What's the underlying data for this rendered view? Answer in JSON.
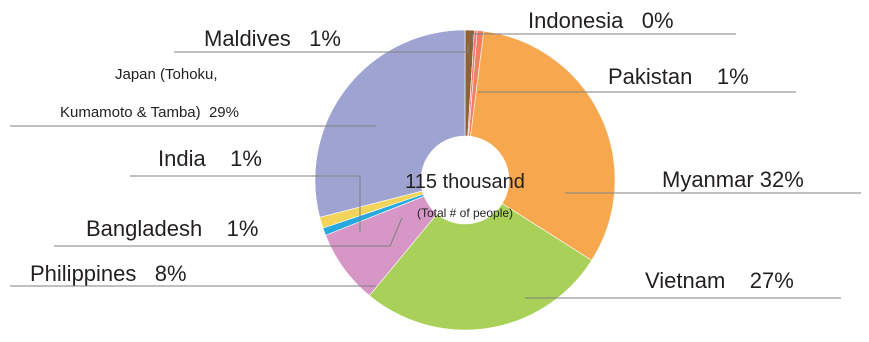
{
  "chart_data": {
    "type": "pie",
    "variant": "donut",
    "center_label": "115 thousand",
    "center_sublabel": "(Total # of people)",
    "slices": [
      {
        "name": "Maldives",
        "display": "Maldives   1%",
        "percent": 1,
        "color": "#8c6236"
      },
      {
        "name": "Indonesia",
        "display": "Indonesia   0%",
        "percent": 0.3,
        "color": "#ff6f6f"
      },
      {
        "name": "Pakistan",
        "display": "Pakistan    1%",
        "percent": 0.7,
        "color": "#f08060"
      },
      {
        "name": "Myanmar",
        "display": "Myanmar 32%",
        "percent": 32,
        "color": "#f7a84e"
      },
      {
        "name": "Vietnam",
        "display": "Vietnam    27%",
        "percent": 27,
        "color": "#a9d058"
      },
      {
        "name": "Philippines",
        "display": "Philippines   8%",
        "percent": 8,
        "color": "#d696c6"
      },
      {
        "name": "Bangladesh",
        "display": "Bangladesh    1%",
        "percent": 0.8,
        "color": "#27a9df"
      },
      {
        "name": "India",
        "display": "India    1%",
        "percent": 1.2,
        "color": "#f2d45b"
      },
      {
        "name": "Japan (Tohoku, Kumamoto & Tamba)",
        "display_lines": [
          "Japan (Tohoku,",
          "Kumamoto & Tamba)  29%"
        ],
        "percent": 29,
        "color": "#9fa3d1"
      }
    ]
  }
}
